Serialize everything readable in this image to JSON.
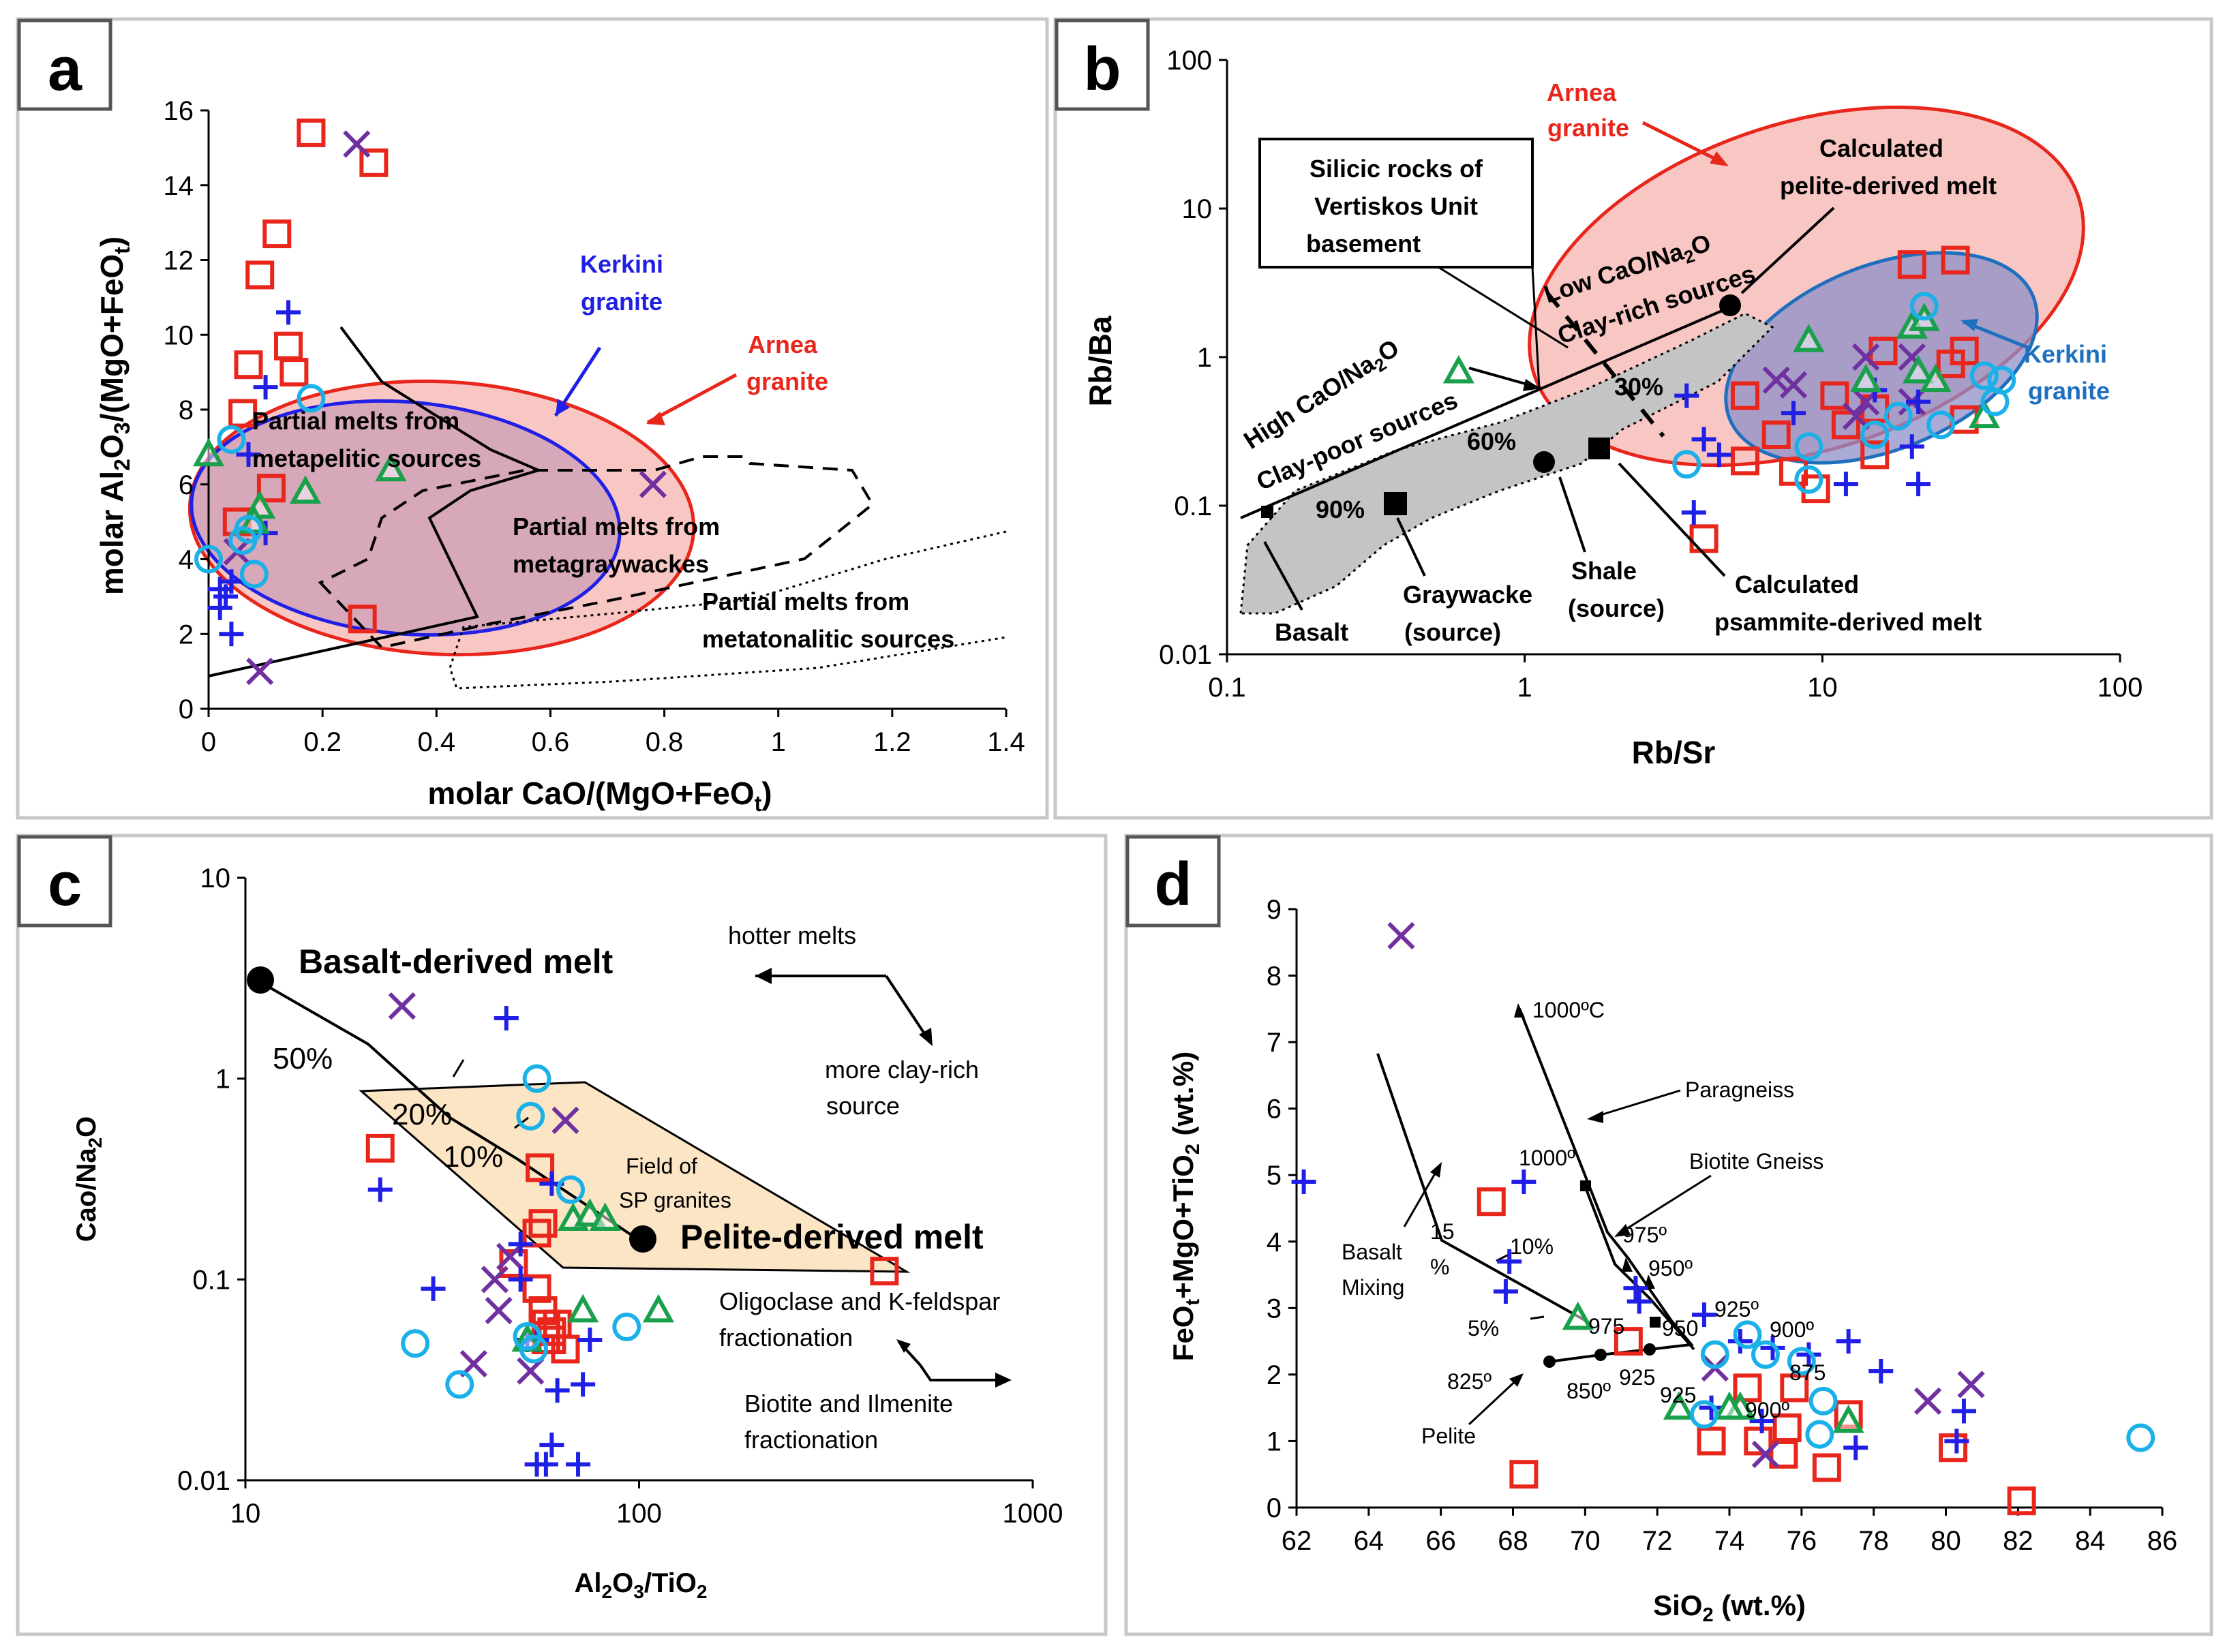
{
  "chart_data": [
    {
      "panel": "a",
      "type": "scatter",
      "xlabel": "molar CaO/(MgO+FeOt)",
      "ylabel": "molar Al2O3/(MgO+FeOt)",
      "xlim": [
        0,
        1.4
      ],
      "ylim": [
        0,
        16
      ],
      "xticks": [
        0,
        0.2,
        0.4,
        0.6,
        0.8,
        1,
        1.2,
        1.4
      ],
      "yticks": [
        0,
        2,
        4,
        6,
        8,
        10,
        12,
        14,
        16
      ],
      "annotations": [
        "Kerkini granite",
        "Arnea granite",
        "Partial melts from metapelitic sources",
        "Partial melts from metagraywackes",
        "Partial melts from metatonalitic sources"
      ],
      "series": [
        {
          "name": "red-square",
          "values": [
            [
              0.18,
              15.4
            ],
            [
              0.29,
              14.6
            ],
            [
              0.12,
              12.7
            ],
            [
              0.09,
              11.6
            ],
            [
              0.14,
              9.7
            ],
            [
              0.15,
              9.0
            ],
            [
              0.07,
              9.2
            ],
            [
              0.06,
              7.9
            ],
            [
              0.11,
              5.9
            ],
            [
              0.27,
              2.4
            ],
            [
              0.05,
              5.0
            ]
          ]
        },
        {
          "name": "purple-x",
          "values": [
            [
              0.26,
              15.1
            ],
            [
              0.78,
              6.0
            ],
            [
              0.09,
              1.0
            ],
            [
              0.05,
              4.2
            ]
          ]
        },
        {
          "name": "blue-plus",
          "values": [
            [
              0.14,
              10.6
            ],
            [
              0.1,
              8.6
            ],
            [
              0.07,
              6.8
            ],
            [
              0.1,
              4.7
            ],
            [
              0.04,
              3.4
            ],
            [
              0.03,
              3.0
            ],
            [
              0.02,
              2.7
            ],
            [
              0.04,
              2.0
            ],
            [
              0.02,
              3.2
            ]
          ]
        },
        {
          "name": "green-triangle",
          "values": [
            [
              0.0,
              6.8
            ],
            [
              0.09,
              5.4
            ],
            [
              0.17,
              5.8
            ],
            [
              0.32,
              6.4
            ],
            [
              0.08,
              5.0
            ]
          ]
        },
        {
          "name": "cyan-circle",
          "values": [
            [
              0.04,
              7.2
            ],
            [
              0.18,
              8.3
            ],
            [
              0.0,
              4.0
            ],
            [
              0.08,
              3.6
            ],
            [
              0.07,
              4.8
            ],
            [
              0.06,
              4.5
            ]
          ]
        }
      ]
    },
    {
      "panel": "b",
      "type": "scatter",
      "scale": "log-log",
      "xlabel": "Rb/Sr",
      "ylabel": "Rb/Ba",
      "xlim": [
        0.1,
        100
      ],
      "ylim": [
        0.01,
        100
      ],
      "xticks": [
        "0.1",
        "1",
        "10",
        "100"
      ],
      "yticks": [
        "0.01",
        "0.1",
        "1",
        "10",
        "100"
      ],
      "annotations": [
        "Arnea granite",
        "Calculated pelite-derived melt",
        "Silicic rocks of Vertiskos Unit basement",
        "Low CaO/Na2O Clay-rich sources",
        "High CaO/Na2O Clay-poor sources",
        "Kerkini granite",
        "30%",
        "60%",
        "90%",
        "Basalt",
        "Graywacke (source)",
        "Shale (source)",
        "Calculated psammite-derived melt"
      ],
      "series": [
        {
          "name": "red-square",
          "values": [
            [
              20,
              4.2
            ],
            [
              28,
              4.5
            ],
            [
              5.5,
              0.55
            ],
            [
              16,
              1.1
            ],
            [
              30,
              1.1
            ],
            [
              27,
              0.9
            ],
            [
              11,
              0.55
            ],
            [
              15,
              0.45
            ],
            [
              7,
              0.3
            ],
            [
              12,
              0.35
            ],
            [
              5.5,
              0.2
            ],
            [
              8,
              0.17
            ],
            [
              9.5,
              0.13
            ],
            [
              15,
              0.22
            ],
            [
              30,
              0.38
            ],
            [
              4,
              0.06
            ]
          ]
        },
        {
          "name": "purple-x",
          "values": [
            [
              14,
              1.0
            ],
            [
              20,
              1.0
            ],
            [
              7,
              0.7
            ],
            [
              8,
              0.65
            ],
            [
              14,
              0.5
            ],
            [
              20,
              0.5
            ],
            [
              13,
              0.4
            ]
          ]
        },
        {
          "name": "blue-plus",
          "values": [
            [
              3.5,
              0.55
            ],
            [
              8,
              0.42
            ],
            [
              4,
              0.28
            ],
            [
              15,
              0.6
            ],
            [
              21,
              0.5
            ],
            [
              4.5,
              0.22
            ],
            [
              20,
              0.25
            ],
            [
              12,
              0.14
            ],
            [
              21,
              0.14
            ],
            [
              3.7,
              0.09
            ]
          ]
        },
        {
          "name": "green-triangle",
          "values": [
            [
              0.6,
              0.8
            ],
            [
              9,
              1.3
            ],
            [
              20,
              1.6
            ],
            [
              21,
              0.8
            ],
            [
              24,
              0.7
            ],
            [
              35,
              0.4
            ],
            [
              22,
              1.8
            ],
            [
              14,
              0.7
            ]
          ]
        },
        {
          "name": "cyan-circle",
          "values": [
            [
              22,
              2.2
            ],
            [
              35,
              0.75
            ],
            [
              40,
              0.7
            ],
            [
              38,
              0.5
            ],
            [
              25,
              0.35
            ],
            [
              18,
              0.4
            ],
            [
              9,
              0.25
            ],
            [
              9,
              0.15
            ],
            [
              3.5,
              0.19
            ],
            [
              15,
              0.3
            ]
          ]
        }
      ]
    },
    {
      "panel": "c",
      "type": "scatter",
      "scale": "log-log",
      "xlabel": "Al2O3/TiO2",
      "ylabel": "Cao/Na2O",
      "xlim": [
        10,
        1000
      ],
      "ylim": [
        0.01,
        10
      ],
      "xticks": [
        "10",
        "100",
        "1000"
      ],
      "yticks": [
        "0.01",
        "0.1",
        "1",
        "10"
      ],
      "annotations": [
        "Basalt-derived melt",
        "hotter melts",
        "more clay-rich source",
        "50%",
        "20%",
        "10%",
        "Field of SP granites",
        "Pelite-derived melt",
        "Oligoclase and K-feldspar fractionation",
        "Biotite and Ilmenite fractionation"
      ],
      "series": [
        {
          "name": "red-square",
          "values": [
            [
              22,
              0.45
            ],
            [
              56,
              0.36
            ],
            [
              57,
              0.19
            ],
            [
              55,
              0.17
            ],
            [
              48,
              0.12
            ],
            [
              55,
              0.09
            ],
            [
              57,
              0.07
            ],
            [
              58,
              0.06
            ],
            [
              60,
              0.055
            ],
            [
              60,
              0.05
            ],
            [
              58,
              0.05
            ],
            [
              62,
              0.06
            ],
            [
              65,
              0.045
            ],
            [
              420,
              0.11
            ]
          ]
        },
        {
          "name": "purple-x",
          "values": [
            [
              25,
              2.3
            ],
            [
              65,
              0.62
            ],
            [
              43,
              0.1
            ],
            [
              44,
              0.07
            ],
            [
              47,
              0.13
            ],
            [
              38,
              0.038
            ],
            [
              53,
              0.035
            ]
          ]
        },
        {
          "name": "blue-plus",
          "values": [
            [
              46,
              2.0
            ],
            [
              22,
              0.28
            ],
            [
              30,
              0.09
            ],
            [
              50,
              0.15
            ],
            [
              50,
              0.1
            ],
            [
              60,
              0.3
            ],
            [
              55,
              0.05
            ],
            [
              55,
              0.012
            ],
            [
              58,
              0.012
            ],
            [
              60,
              0.015
            ],
            [
              62,
              0.028
            ],
            [
              70,
              0.012
            ],
            [
              72,
              0.03
            ],
            [
              75,
              0.05
            ],
            [
              52,
              0.05
            ]
          ]
        },
        {
          "name": "green-triangle",
          "values": [
            [
              68,
              0.2
            ],
            [
              75,
              0.21
            ],
            [
              82,
              0.2
            ],
            [
              112,
              0.07
            ],
            [
              52,
              0.05
            ],
            [
              72,
              0.07
            ]
          ]
        },
        {
          "name": "cyan-circle",
          "values": [
            [
              55,
              1.0
            ],
            [
              53,
              0.65
            ],
            [
              67,
              0.28
            ],
            [
              27,
              0.048
            ],
            [
              35,
              0.03
            ],
            [
              52,
              0.052
            ],
            [
              54,
              0.045
            ],
            [
              93,
              0.058
            ]
          ]
        }
      ]
    },
    {
      "panel": "d",
      "type": "scatter",
      "xlabel": "SiO2 (wt.%)",
      "ylabel": "FeOt+MgO+TiO2 (wt.%)",
      "xlim": [
        62,
        86
      ],
      "ylim": [
        0,
        9
      ],
      "xticks": [
        62,
        64,
        66,
        68,
        70,
        72,
        74,
        76,
        78,
        80,
        82,
        84,
        86
      ],
      "yticks": [
        0,
        1,
        2,
        3,
        4,
        5,
        6,
        7,
        8,
        9
      ],
      "annotations": [
        "1000oC",
        "Paragneiss",
        "1000o",
        "Biotite Gneiss",
        "975o",
        "950o",
        "925o",
        "900o",
        "875",
        "850o",
        "825o",
        "900o",
        "975",
        "950",
        "925",
        "925",
        "15 %",
        "10%",
        "5%",
        "Basalt Mixing",
        "Pelite"
      ],
      "series": [
        {
          "name": "red-square",
          "values": [
            [
              67.4,
              4.6
            ],
            [
              71.2,
              2.5
            ],
            [
              68.3,
              0.5
            ],
            [
              73.5,
              1.0
            ],
            [
              74.8,
              1.0
            ],
            [
              75.5,
              0.8
            ],
            [
              75.6,
              1.2
            ],
            [
              76.7,
              0.6
            ],
            [
              77.3,
              1.4
            ],
            [
              80.2,
              0.9
            ],
            [
              82.1,
              0.1
            ],
            [
              75.8,
              1.8
            ],
            [
              74.5,
              1.8
            ]
          ]
        },
        {
          "name": "purple-x",
          "values": [
            [
              64.9,
              8.6
            ],
            [
              79.5,
              1.6
            ],
            [
              80.7,
              1.85
            ],
            [
              75,
              0.8
            ],
            [
              73.6,
              2.1
            ]
          ]
        },
        {
          "name": "blue-plus",
          "values": [
            [
              62.2,
              4.9
            ],
            [
              68.3,
              4.9
            ],
            [
              67.9,
              3.7
            ],
            [
              67.8,
              3.25
            ],
            [
              71.4,
              3.3
            ],
            [
              71.5,
              3.1
            ],
            [
              73.3,
              2.9
            ],
            [
              74.3,
              2.5
            ],
            [
              75.2,
              2.4
            ],
            [
              76.2,
              2.3
            ],
            [
              77.3,
              2.5
            ],
            [
              78.2,
              2.05
            ],
            [
              80.5,
              1.45
            ],
            [
              80.3,
              1.0
            ],
            [
              77.5,
              0.9
            ],
            [
              74.9,
              1.3
            ],
            [
              73.5,
              1.5
            ]
          ]
        },
        {
          "name": "green-triangle",
          "values": [
            [
              69.8,
              2.85
            ],
            [
              72.6,
              1.5
            ],
            [
              74.3,
              1.5
            ],
            [
              77.3,
              1.3
            ],
            [
              74,
              1.5
            ]
          ]
        },
        {
          "name": "cyan-circle",
          "values": [
            [
              73.6,
              2.3
            ],
            [
              74.5,
              2.6
            ],
            [
              76,
              2.2
            ],
            [
              76.5,
              1.1
            ],
            [
              76.6,
              1.6
            ],
            [
              73.3,
              1.4
            ],
            [
              85.4,
              1.05
            ],
            [
              75,
              2.3
            ]
          ]
        }
      ]
    }
  ],
  "colors": {
    "red": "#e8261c",
    "purple": "#7030a0",
    "blue": "#1f1fe6",
    "green": "#19a04a",
    "cyan": "#1ab0e8",
    "arnea_fill": "#f6b4b0",
    "kerkini_fill": "#8e8fc8",
    "sp_field": "#fbe5c4"
  }
}
